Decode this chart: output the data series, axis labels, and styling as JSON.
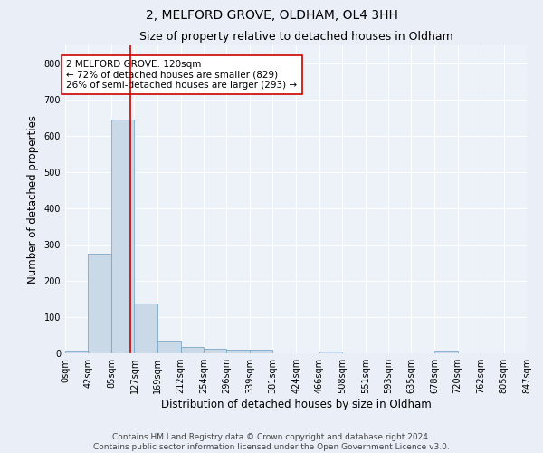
{
  "title_line1": "2, MELFORD GROVE, OLDHAM, OL4 3HH",
  "title_line2": "Size of property relative to detached houses in Oldham",
  "xlabel": "Distribution of detached houses by size in Oldham",
  "ylabel": "Number of detached properties",
  "bar_edges": [
    0,
    42,
    85,
    127,
    169,
    212,
    254,
    296,
    339,
    381,
    424,
    466,
    508,
    551,
    593,
    635,
    678,
    720,
    762,
    805,
    847
  ],
  "bar_heights": [
    8,
    275,
    645,
    138,
    35,
    18,
    12,
    11,
    10,
    0,
    0,
    5,
    0,
    0,
    0,
    0,
    7,
    0,
    0,
    0
  ],
  "bar_color": "#c9d9e8",
  "bar_edgecolor": "#7aa8c8",
  "vline_x": 120,
  "vline_color": "#cc0000",
  "annotation_box_text": "2 MELFORD GROVE: 120sqm\n← 72% of detached houses are smaller (829)\n26% of semi-detached houses are larger (293) →",
  "ylim": [
    0,
    850
  ],
  "yticks": [
    0,
    100,
    200,
    300,
    400,
    500,
    600,
    700,
    800
  ],
  "tick_labels": [
    "0sqm",
    "42sqm",
    "85sqm",
    "127sqm",
    "169sqm",
    "212sqm",
    "254sqm",
    "296sqm",
    "339sqm",
    "381sqm",
    "424sqm",
    "466sqm",
    "508sqm",
    "551sqm",
    "593sqm",
    "635sqm",
    "678sqm",
    "720sqm",
    "762sqm",
    "805sqm",
    "847sqm"
  ],
  "footer_text": "Contains HM Land Registry data © Crown copyright and database right 2024.\nContains public sector information licensed under the Open Government Licence v3.0.",
  "bg_color": "#eaeff7",
  "plot_bg_color": "#edf1f8",
  "grid_color": "#ffffff",
  "title_fontsize": 10,
  "subtitle_fontsize": 9,
  "axis_label_fontsize": 8.5,
  "tick_fontsize": 7,
  "annotation_fontsize": 7.5,
  "footer_fontsize": 6.5
}
